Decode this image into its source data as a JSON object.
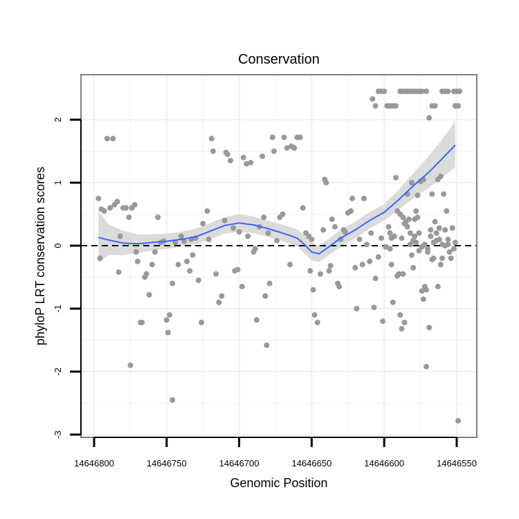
{
  "chart_data": {
    "type": "scatter",
    "title": "Conservation",
    "xlabel": "Genomic Position",
    "ylabel": "phyloP LRT conservation scores",
    "x_reversed": true,
    "xlim": [
      14646805,
      14646545
    ],
    "ylim": [
      -3,
      2.7
    ],
    "x_ticks": [
      14646800,
      14646750,
      14646700,
      14646650,
      14646600,
      14646550
    ],
    "x_tick_labels": [
      "14646800",
      "14646750",
      "14646700",
      "14646650",
      "14646600",
      "14646550"
    ],
    "y_ticks": [
      -3,
      -2,
      -1,
      0,
      1,
      2
    ],
    "y_tick_labels": [
      "-3",
      "-2",
      "-1",
      "0",
      "1",
      "2"
    ],
    "reference_line": {
      "y": 0,
      "style": "dashed"
    },
    "colors": {
      "points": "#999999",
      "smooth_line": "#3366ff",
      "confidence_band": "#d9d9d9",
      "panel_border": "#7f7f7f",
      "grid": "#f0f0f0",
      "reference_line": "#000000"
    },
    "points": [
      [
        14646797,
        0.75
      ],
      [
        14646795,
        0.58
      ],
      [
        14646793,
        0.55
      ],
      [
        14646796,
        -0.2
      ],
      [
        14646791,
        1.7
      ],
      [
        14646787,
        1.7
      ],
      [
        14646789,
        0.6
      ],
      [
        14646786,
        0.65
      ],
      [
        14646784,
        0.7
      ],
      [
        14646782,
        0.15
      ],
      [
        14646783,
        -0.42
      ],
      [
        14646780,
        0.6
      ],
      [
        14646778,
        0.6
      ],
      [
        14646776,
        0.45
      ],
      [
        14646775,
        -1.9
      ],
      [
        14646774,
        0.6
      ],
      [
        14646772,
        0.65
      ],
      [
        14646771,
        -0.1
      ],
      [
        14646770,
        -0.25
      ],
      [
        14646768,
        -1.22
      ],
      [
        14646767,
        -1.22
      ],
      [
        14646765,
        -0.5
      ],
      [
        14646764,
        -0.45
      ],
      [
        14646762,
        -0.78
      ],
      [
        14646760,
        -0.3
      ],
      [
        14646758,
        -0.1
      ],
      [
        14646756,
        0.45
      ],
      [
        14646754,
        0.05
      ],
      [
        14646752,
        0.07
      ],
      [
        14646750,
        -1.18
      ],
      [
        14646749,
        -1.38
      ],
      [
        14646748,
        -1.1
      ],
      [
        14646746,
        -0.6
      ],
      [
        14646744,
        0.05
      ],
      [
        14646742,
        -0.3
      ],
      [
        14646740,
        0.15
      ],
      [
        14646738,
        0.07
      ],
      [
        14646746,
        -2.45
      ],
      [
        14646736,
        -0.25
      ],
      [
        14646734,
        -0.4
      ],
      [
        14646733,
        0.1
      ],
      [
        14646732,
        -0.15
      ],
      [
        14646730,
        0.12
      ],
      [
        14646728,
        -0.55
      ],
      [
        14646726,
        -1.22
      ],
      [
        14646725,
        0.35
      ],
      [
        14646722,
        0.55
      ],
      [
        14646721,
        0.1
      ],
      [
        14646719,
        1.7
      ],
      [
        14646718,
        1.5
      ],
      [
        14646716,
        -0.45
      ],
      [
        14646714,
        -0.9
      ],
      [
        14646712,
        -0.8
      ],
      [
        14646710,
        0.4
      ],
      [
        14646709,
        1.48
      ],
      [
        14646708,
        1.45
      ],
      [
        14646706,
        1.35
      ],
      [
        14646704,
        0.28
      ],
      [
        14646703,
        -0.4
      ],
      [
        14646701,
        -0.38
      ],
      [
        14646700,
        0.22
      ],
      [
        14646698,
        -0.65
      ],
      [
        14646697,
        1.4
      ],
      [
        14646695,
        1.3
      ],
      [
        14646694,
        0.15
      ],
      [
        14646692,
        1.32
      ],
      [
        14646690,
        -0.1
      ],
      [
        14646689,
        -0.05
      ],
      [
        14646688,
        -1.18
      ],
      [
        14646686,
        0.3
      ],
      [
        14646684,
        1.42
      ],
      [
        14646683,
        0.45
      ],
      [
        14646682,
        -0.8
      ],
      [
        14646681,
        -1.58
      ],
      [
        14646680,
        0.2
      ],
      [
        14646679,
        -0.6
      ],
      [
        14646677,
        1.72
      ],
      [
        14646676,
        1.5
      ],
      [
        14646674,
        0.08
      ],
      [
        14646672,
        0.45
      ],
      [
        14646670,
        0.5
      ],
      [
        14646669,
        1.72
      ],
      [
        14646667,
        1.55
      ],
      [
        14646665,
        -0.3
      ],
      [
        14646664,
        1.58
      ],
      [
        14646662,
        1.55
      ],
      [
        14646660,
        1.72
      ],
      [
        14646658,
        1.72
      ],
      [
        14646656,
        0.6
      ],
      [
        14646654,
        0.2
      ],
      [
        14646652,
        0.15
      ],
      [
        14646651,
        -0.4
      ],
      [
        14646650,
        0.1
      ],
      [
        14646649,
        -0.7
      ],
      [
        14646648,
        -1.1
      ],
      [
        14646646,
        -1.22
      ],
      [
        14646644,
        -0.45
      ],
      [
        14646642,
        0.25
      ],
      [
        14646641,
        1.05
      ],
      [
        14646640,
        1.0
      ],
      [
        14646638,
        -0.4
      ],
      [
        14646637,
        -0.32
      ],
      [
        14646636,
        0.42
      ],
      [
        14646634,
        0.3
      ],
      [
        14646632,
        -0.6
      ],
      [
        14646631,
        -0.65
      ],
      [
        14646630,
        0.1
      ],
      [
        14646628,
        0.25
      ],
      [
        14646627,
        0.22
      ],
      [
        14646625,
        0.52
      ],
      [
        14646623,
        0.55
      ],
      [
        14646622,
        0.75
      ],
      [
        14646620,
        -0.35
      ],
      [
        14646619,
        -1.0
      ],
      [
        14646617,
        0.1
      ],
      [
        14646615,
        -0.3
      ],
      [
        14646614,
        0.75
      ],
      [
        14646612,
        0.02
      ],
      [
        14646610,
        -0.25
      ],
      [
        14646609,
        0.2
      ],
      [
        14646607,
        -0.98
      ],
      [
        14646606,
        -0.52
      ],
      [
        14646604,
        -0.18
      ],
      [
        14646602,
        0.12
      ],
      [
        14646601,
        -1.2
      ],
      [
        14646599,
        -0.02
      ],
      [
        14646597,
        0.3
      ],
      [
        14646596,
        0.2
      ],
      [
        14646595,
        -0.3
      ],
      [
        14646594,
        -0.9
      ],
      [
        14646592,
        1.08
      ],
      [
        14646591,
        -0.48
      ],
      [
        14646590,
        -0.45
      ],
      [
        14646589,
        -1.1
      ],
      [
        14646588,
        -1.32
      ],
      [
        14646587,
        -0.45
      ],
      [
        14646586,
        -1.22
      ],
      [
        14646584,
        0.82
      ],
      [
        14646582,
        0.02
      ],
      [
        14646581,
        -0.15
      ],
      [
        14646580,
        -0.35
      ],
      [
        14646579,
        0.15
      ],
      [
        14646578,
        0.55
      ],
      [
        14646577,
        0.8
      ],
      [
        14646576,
        0.2
      ],
      [
        14646574,
        -0.72
      ],
      [
        14646573,
        -0.85
      ],
      [
        14646572,
        -0.65
      ],
      [
        14646571,
        -1.92
      ],
      [
        14646570,
        -0.05
      ],
      [
        14646569,
        2.03
      ],
      [
        14646568,
        0.25
      ],
      [
        14646567,
        0.82
      ],
      [
        14646566,
        -0.2
      ],
      [
        14646564,
        0.2
      ],
      [
        14646563,
        -0.65
      ],
      [
        14646562,
        0.28
      ],
      [
        14646561,
        -0.3
      ],
      [
        14646560,
        -0.2
      ],
      [
        14646559,
        0.82
      ],
      [
        14646558,
        0.25
      ],
      [
        14646557,
        0.55
      ],
      [
        14646556,
        0.02
      ],
      [
        14646555,
        -0.1
      ],
      [
        14646554,
        -0.2
      ],
      [
        14646553,
        0.28
      ],
      [
        14646552,
        -0.05
      ],
      [
        14646596,
        -0.05
      ],
      [
        14646588,
        0.12
      ],
      [
        14646586,
        0.35
      ],
      [
        14646584,
        0.3
      ],
      [
        14646582,
        0.2
      ],
      [
        14646580,
        0.08
      ],
      [
        14646578,
        0.05
      ],
      [
        14646576,
        -0.08
      ],
      [
        14646574,
        -0.02
      ],
      [
        14646572,
        0.02
      ],
      [
        14646570,
        -0.1
      ],
      [
        14646568,
        0.15
      ],
      [
        14646566,
        0.05
      ],
      [
        14646564,
        0.08
      ],
      [
        14646562,
        0.1
      ],
      [
        14646560,
        0.02
      ],
      [
        14646558,
        0.0
      ],
      [
        14646556,
        0.1
      ],
      [
        14646608,
        2.33
      ],
      [
        14646606,
        2.22
      ],
      [
        14646604,
        2.45
      ],
      [
        14646602,
        2.45
      ],
      [
        14646600,
        2.45
      ],
      [
        14646598,
        2.22
      ],
      [
        14646596,
        2.22
      ],
      [
        14646594,
        2.22
      ],
      [
        14646592,
        2.22
      ],
      [
        14646589,
        2.45
      ],
      [
        14646588,
        2.45
      ],
      [
        14646586,
        2.45
      ],
      [
        14646584,
        2.45
      ],
      [
        14646582,
        2.45
      ],
      [
        14646580,
        2.45
      ],
      [
        14646578,
        2.45
      ],
      [
        14646576,
        2.45
      ],
      [
        14646574,
        2.45
      ],
      [
        14646571,
        2.45
      ],
      [
        14646567,
        2.22
      ],
      [
        14646565,
        2.22
      ],
      [
        14646560,
        2.45
      ],
      [
        14646558,
        2.45
      ],
      [
        14646556,
        2.45
      ],
      [
        14646552,
        2.45
      ],
      [
        14646550,
        2.45
      ],
      [
        14646551,
        2.22
      ],
      [
        14646549,
        2.22
      ],
      [
        14646548,
        2.45
      ],
      [
        14646595,
        0.12
      ],
      [
        14646593,
        0.15
      ],
      [
        14646591,
        0.55
      ],
      [
        14646589,
        0.5
      ],
      [
        14646587,
        0.45
      ],
      [
        14646585,
        0.38
      ],
      [
        14646583,
        0.42
      ],
      [
        14646581,
        1.0
      ],
      [
        14646579,
        0.42
      ],
      [
        14646577,
        0.45
      ],
      [
        14646575,
        1.02
      ],
      [
        14646573,
        1.05
      ],
      [
        14646571,
        -0.7
      ],
      [
        14646569,
        -1.3
      ],
      [
        14646567,
        -0.22
      ],
      [
        14646565,
        0.38
      ],
      [
        14646563,
        1.05
      ],
      [
        14646561,
        1.1
      ],
      [
        14646549,
        -2.78
      ],
      [
        14646551,
        0.05
      ]
    ],
    "smooth_fit": [
      [
        14646797,
        0.13
      ],
      [
        14646790,
        0.09
      ],
      [
        14646780,
        0.04
      ],
      [
        14646770,
        0.03
      ],
      [
        14646760,
        0.05
      ],
      [
        14646750,
        0.07
      ],
      [
        14646740,
        0.1
      ],
      [
        14646730,
        0.14
      ],
      [
        14646720,
        0.23
      ],
      [
        14646710,
        0.32
      ],
      [
        14646700,
        0.36
      ],
      [
        14646690,
        0.33
      ],
      [
        14646680,
        0.27
      ],
      [
        14646670,
        0.2
      ],
      [
        14646660,
        0.12
      ],
      [
        14646655,
        0.02
      ],
      [
        14646650,
        -0.1
      ],
      [
        14646645,
        -0.13
      ],
      [
        14646640,
        -0.05
      ],
      [
        14646630,
        0.12
      ],
      [
        14646620,
        0.25
      ],
      [
        14646610,
        0.4
      ],
      [
        14646600,
        0.53
      ],
      [
        14646590,
        0.73
      ],
      [
        14646580,
        0.95
      ],
      [
        14646570,
        1.15
      ],
      [
        14646560,
        1.38
      ],
      [
        14646551,
        1.6
      ]
    ],
    "confidence_band": [
      [
        14646797,
        -0.28,
        0.55
      ],
      [
        14646790,
        -0.15,
        0.34
      ],
      [
        14646780,
        -0.15,
        0.24
      ],
      [
        14646770,
        -0.12,
        0.18
      ],
      [
        14646760,
        -0.08,
        0.18
      ],
      [
        14646750,
        -0.05,
        0.19
      ],
      [
        14646740,
        -0.02,
        0.22
      ],
      [
        14646730,
        0.02,
        0.27
      ],
      [
        14646720,
        0.1,
        0.36
      ],
      [
        14646710,
        0.19,
        0.45
      ],
      [
        14646700,
        0.22,
        0.5
      ],
      [
        14646690,
        0.2,
        0.46
      ],
      [
        14646680,
        0.14,
        0.4
      ],
      [
        14646670,
        0.07,
        0.33
      ],
      [
        14646660,
        -0.01,
        0.26
      ],
      [
        14646655,
        -0.12,
        0.16
      ],
      [
        14646650,
        -0.24,
        0.05
      ],
      [
        14646645,
        -0.26,
        0.0
      ],
      [
        14646640,
        -0.18,
        0.08
      ],
      [
        14646630,
        -0.02,
        0.25
      ],
      [
        14646620,
        0.12,
        0.38
      ],
      [
        14646610,
        0.27,
        0.53
      ],
      [
        14646600,
        0.4,
        0.66
      ],
      [
        14646590,
        0.57,
        0.89
      ],
      [
        14646580,
        0.75,
        1.15
      ],
      [
        14646570,
        0.91,
        1.4
      ],
      [
        14646560,
        1.08,
        1.69
      ],
      [
        14646551,
        1.25,
        1.98
      ]
    ]
  }
}
